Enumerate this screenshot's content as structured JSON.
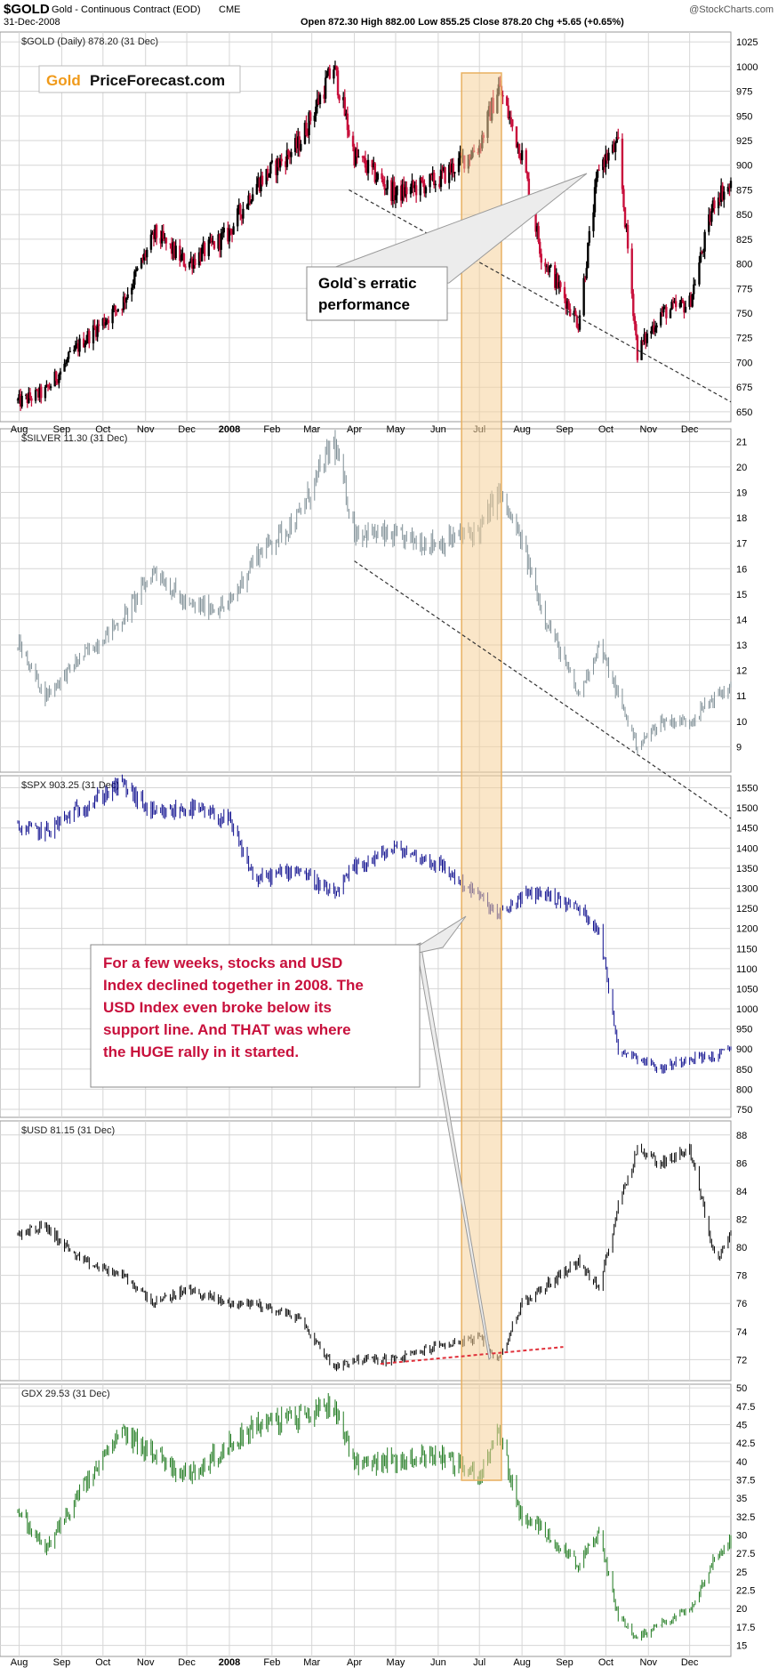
{
  "header": {
    "symbol": "$GOLD",
    "description": "Gold - Continuous Contract (EOD)",
    "exchange": "CME",
    "date": "31-Dec-2008",
    "ohlc": "Open 872.30  High 882.00  Low 855.25  Close 878.20  Chg +5.65 (+0.65%)",
    "watermark": "@StockCharts.com"
  },
  "logo": {
    "gold": "Gold",
    "rest": "PriceForecast.com"
  },
  "colors": {
    "gold_up": "#000000",
    "gold_down": "#c8103c",
    "silver": "#7f8f96",
    "spx": "#0a0a8c",
    "usd": "#000000",
    "gdx": "#1f7a1f",
    "highlight_fill": "#f5d29a",
    "highlight_stroke": "#e8b060",
    "callout_text": "#c8103c",
    "support_line": "#e0303a",
    "grid": "#d6d6d6"
  },
  "x_axis": {
    "ticks": [
      "Aug",
      "Sep",
      "Oct",
      "Nov",
      "Dec",
      "2008",
      "Feb",
      "Mar",
      "Apr",
      "May",
      "Jun",
      "Jul",
      "Aug",
      "Sep",
      "Oct",
      "Nov",
      "Dec"
    ]
  },
  "annotations": {
    "gold_callout": [
      "Gold`s erratic",
      "performance"
    ],
    "stocks_callout": [
      "For a few weeks, stocks and USD",
      "Index declined together in 2008. The",
      "USD Index even broke below its",
      "support line. And THAT was where",
      "the HUGE rally in it started."
    ]
  },
  "chart_data": [
    {
      "type": "line",
      "series": [
        {
          "name": "$GOLD (Daily) 878.20 (31 Dec)",
          "x": [
            "2007-08-01",
            "2007-08-20",
            "2007-09-15",
            "2007-10-15",
            "2007-11-08",
            "2007-12-01",
            "2007-12-31",
            "2008-01-20",
            "2008-02-20",
            "2008-03-17",
            "2008-04-01",
            "2008-05-01",
            "2008-06-01",
            "2008-07-01",
            "2008-07-15",
            "2008-08-01",
            "2008-08-15",
            "2008-09-11",
            "2008-09-26",
            "2008-10-10",
            "2008-10-24",
            "2008-11-10",
            "2008-12-01",
            "2008-12-20",
            "2008-12-31"
          ],
          "values": [
            660,
            670,
            720,
            760,
            830,
            800,
            830,
            880,
            920,
            1000,
            910,
            870,
            885,
            920,
            980,
            910,
            810,
            740,
            900,
            920,
            710,
            750,
            760,
            870,
            878
          ]
        }
      ],
      "ylim": [
        640,
        1035
      ],
      "yticks": [
        650,
        675,
        700,
        725,
        750,
        775,
        800,
        825,
        850,
        875,
        900,
        925,
        950,
        975,
        1000,
        1025
      ]
    },
    {
      "type": "line",
      "series": [
        {
          "name": "$SILVER 11.30 (31 Dec)",
          "x": [
            "2007-08-01",
            "2007-08-20",
            "2007-09-15",
            "2007-10-15",
            "2007-11-08",
            "2007-12-01",
            "2007-12-31",
            "2008-01-20",
            "2008-02-20",
            "2008-03-17",
            "2008-04-01",
            "2008-05-01",
            "2008-06-01",
            "2008-07-01",
            "2008-07-15",
            "2008-08-01",
            "2008-08-15",
            "2008-09-11",
            "2008-09-26",
            "2008-10-10",
            "2008-10-24",
            "2008-11-10",
            "2008-12-01",
            "2008-12-20",
            "2008-12-31"
          ],
          "values": [
            13,
            11,
            12.5,
            14,
            16,
            14.5,
            14.5,
            16.5,
            18,
            21,
            17.5,
            17.2,
            17,
            17.5,
            19,
            17,
            14.5,
            11,
            13,
            11,
            9,
            10,
            10,
            11,
            11.3
          ]
        }
      ],
      "ylim": [
        8,
        21.5
      ],
      "yticks": [
        9,
        10,
        11,
        12,
        13,
        14,
        15,
        16,
        17,
        18,
        19,
        20,
        21
      ]
    },
    {
      "type": "line",
      "series": [
        {
          "name": "$SPX 903.25 (31 Dec)",
          "x": [
            "2007-08-01",
            "2007-08-20",
            "2007-09-15",
            "2007-10-15",
            "2007-11-08",
            "2007-12-01",
            "2007-12-31",
            "2008-01-20",
            "2008-02-20",
            "2008-03-17",
            "2008-04-01",
            "2008-05-01",
            "2008-06-01",
            "2008-07-01",
            "2008-07-15",
            "2008-08-01",
            "2008-08-15",
            "2008-09-11",
            "2008-09-26",
            "2008-10-10",
            "2008-10-24",
            "2008-11-10",
            "2008-12-01",
            "2008-12-20",
            "2008-12-31"
          ],
          "values": [
            1450,
            1440,
            1500,
            1560,
            1480,
            1500,
            1470,
            1320,
            1350,
            1280,
            1350,
            1400,
            1360,
            1280,
            1230,
            1280,
            1290,
            1250,
            1200,
            900,
            880,
            850,
            880,
            880,
            903
          ]
        }
      ],
      "ylim": [
        730,
        1580
      ],
      "yticks": [
        750,
        800,
        850,
        900,
        950,
        1000,
        1050,
        1100,
        1150,
        1200,
        1250,
        1300,
        1350,
        1400,
        1450,
        1500,
        1550
      ]
    },
    {
      "type": "line",
      "series": [
        {
          "name": "$USD 81.15 (31 Dec)",
          "x": [
            "2007-08-01",
            "2007-08-20",
            "2007-09-15",
            "2007-10-15",
            "2007-11-08",
            "2007-12-01",
            "2007-12-31",
            "2008-01-20",
            "2008-02-20",
            "2008-03-17",
            "2008-04-01",
            "2008-05-01",
            "2008-06-01",
            "2008-07-01",
            "2008-07-15",
            "2008-08-01",
            "2008-08-15",
            "2008-09-11",
            "2008-09-26",
            "2008-10-10",
            "2008-10-24",
            "2008-11-10",
            "2008-12-01",
            "2008-12-20",
            "2008-12-31"
          ],
          "values": [
            81,
            81.5,
            79,
            78,
            76,
            77,
            76,
            76,
            75,
            71.5,
            72,
            72,
            73,
            73.5,
            72,
            76,
            77,
            79,
            77,
            83,
            87,
            86,
            87,
            79,
            81.15
          ]
        }
      ],
      "ylim": [
        70.5,
        89
      ],
      "yticks": [
        72,
        74,
        76,
        78,
        80,
        82,
        84,
        86,
        88
      ]
    },
    {
      "type": "line",
      "series": [
        {
          "name": "GDX 29.53 (31 Dec)",
          "x": [
            "2007-08-01",
            "2007-08-20",
            "2007-09-15",
            "2007-10-15",
            "2007-11-08",
            "2007-12-01",
            "2007-12-31",
            "2008-01-20",
            "2008-02-20",
            "2008-03-17",
            "2008-04-01",
            "2008-05-01",
            "2008-06-01",
            "2008-07-01",
            "2008-07-15",
            "2008-08-01",
            "2008-08-15",
            "2008-09-11",
            "2008-09-26",
            "2008-10-10",
            "2008-10-24",
            "2008-11-10",
            "2008-12-01",
            "2008-12-20",
            "2008-12-31"
          ],
          "values": [
            33,
            28,
            36,
            44,
            41,
            38,
            42,
            45,
            46,
            48,
            40,
            40,
            41,
            38,
            44,
            32,
            31,
            26,
            30,
            19,
            16,
            18,
            20,
            27,
            29.5
          ]
        }
      ],
      "ylim": [
        13.5,
        50.5
      ],
      "yticks": [
        15,
        17.5,
        20,
        22.5,
        25,
        27.5,
        30,
        32.5,
        35,
        37.5,
        40,
        42.5,
        45,
        47.5,
        50
      ]
    }
  ]
}
